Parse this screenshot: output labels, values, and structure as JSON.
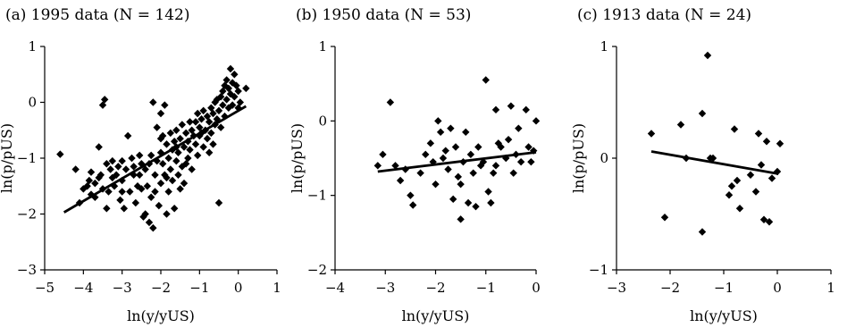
{
  "chart_data": [
    {
      "type": "scatter",
      "title": "(a)  1995 data (N = 142)",
      "xlabel": "ln(y/yUS)",
      "ylabel": "ln(p/pUS)",
      "xlim": [
        -5,
        1
      ],
      "ylim": [
        -3,
        1
      ],
      "xticks": [
        "−5",
        "−4",
        "−3",
        "−2",
        "−1",
        "0",
        "1"
      ],
      "yticks": [
        "−3",
        "−2",
        "−1",
        "0",
        "1"
      ],
      "trendline": [
        [
          -4.5,
          -1.97
        ],
        [
          0.2,
          -0.07
        ]
      ],
      "points": [
        [
          -4.6,
          -0.93
        ],
        [
          -4.2,
          -1.2
        ],
        [
          -4.1,
          -1.8
        ],
        [
          -4.0,
          -1.55
        ],
        [
          -3.9,
          -1.5
        ],
        [
          -3.85,
          -1.4
        ],
        [
          -3.8,
          -1.25
        ],
        [
          -3.8,
          -1.65
        ],
        [
          -3.7,
          -1.45
        ],
        [
          -3.7,
          -1.7
        ],
        [
          -3.6,
          -0.8
        ],
        [
          -3.6,
          -1.35
        ],
        [
          -3.55,
          -1.3
        ],
        [
          -3.5,
          -0.05
        ],
        [
          -3.5,
          -1.55
        ],
        [
          -3.45,
          0.05
        ],
        [
          -3.4,
          -1.1
        ],
        [
          -3.4,
          -1.9
        ],
        [
          -3.35,
          -1.6
        ],
        [
          -3.3,
          -1.2
        ],
        [
          -3.25,
          -1.05
        ],
        [
          -3.2,
          -1.5
        ],
        [
          -3.15,
          -1.3
        ],
        [
          -3.1,
          -1.15
        ],
        [
          -3.05,
          -1.75
        ],
        [
          -3.0,
          -1.05
        ],
        [
          -3.0,
          -1.4
        ],
        [
          -2.95,
          -1.9
        ],
        [
          -2.9,
          -1.2
        ],
        [
          -2.85,
          -0.6
        ],
        [
          -2.8,
          -1.6
        ],
        [
          -2.75,
          -1.0
        ],
        [
          -2.7,
          -1.3
        ],
        [
          -2.65,
          -1.8
        ],
        [
          -2.6,
          -1.5
        ],
        [
          -2.55,
          -0.95
        ],
        [
          -2.5,
          -1.1
        ],
        [
          -2.5,
          -1.55
        ],
        [
          -2.45,
          -2.05
        ],
        [
          -2.4,
          -2.0
        ],
        [
          -2.4,
          -1.2
        ],
        [
          -2.35,
          -1.5
        ],
        [
          -2.3,
          -2.15
        ],
        [
          -2.3,
          -1.1
        ],
        [
          -2.25,
          -0.95
        ],
        [
          -2.25,
          -1.7
        ],
        [
          -2.2,
          -2.25
        ],
        [
          -2.2,
          0.0
        ],
        [
          -2.15,
          -1.3
        ],
        [
          -2.1,
          -0.45
        ],
        [
          -2.1,
          -1.05
        ],
        [
          -2.05,
          -1.85
        ],
        [
          -2.0,
          -0.2
        ],
        [
          -2.0,
          -0.9
        ],
        [
          -2.0,
          -1.45
        ],
        [
          -1.95,
          -0.6
        ],
        [
          -1.95,
          -1.1
        ],
        [
          -1.9,
          -1.3
        ],
        [
          -1.9,
          -0.05
        ],
        [
          -1.85,
          -0.75
        ],
        [
          -1.85,
          -2.0
        ],
        [
          -1.8,
          -1.0
        ],
        [
          -1.8,
          -1.6
        ],
        [
          -1.75,
          -0.55
        ],
        [
          -1.75,
          -1.2
        ],
        [
          -1.7,
          -0.85
        ],
        [
          -1.7,
          -1.4
        ],
        [
          -1.65,
          -1.9
        ],
        [
          -1.65,
          -0.7
        ],
        [
          -1.6,
          -1.05
        ],
        [
          -1.6,
          -0.5
        ],
        [
          -1.55,
          -1.3
        ],
        [
          -1.55,
          -0.9
        ],
        [
          -1.5,
          -1.55
        ],
        [
          -1.5,
          -0.65
        ],
        [
          -1.45,
          -0.4
        ],
        [
          -1.45,
          -1.15
        ],
        [
          -1.4,
          -0.8
        ],
        [
          -1.4,
          -1.45
        ],
        [
          -1.35,
          -0.55
        ],
        [
          -1.3,
          -0.7
        ],
        [
          -1.3,
          -1.0
        ],
        [
          -1.25,
          -0.85
        ],
        [
          -1.2,
          -0.5
        ],
        [
          -1.2,
          -1.2
        ],
        [
          -1.15,
          -0.6
        ],
        [
          -1.1,
          -0.75
        ],
        [
          -1.1,
          -0.35
        ],
        [
          -1.05,
          -0.95
        ],
        [
          -1.0,
          -0.45
        ],
        [
          -1.0,
          -0.6
        ],
        [
          -0.95,
          -0.3
        ],
        [
          -0.9,
          -0.8
        ],
        [
          -0.9,
          -0.15
        ],
        [
          -0.85,
          -0.5
        ],
        [
          -0.8,
          -0.25
        ],
        [
          -0.8,
          -0.65
        ],
        [
          -0.75,
          -0.35
        ],
        [
          -0.7,
          -0.1
        ],
        [
          -0.7,
          -0.55
        ],
        [
          -0.65,
          -0.2
        ],
        [
          -0.6,
          -0.4
        ],
        [
          -0.6,
          0.0
        ],
        [
          -0.55,
          -0.3
        ],
        [
          -0.5,
          -1.8
        ],
        [
          -0.5,
          -0.15
        ],
        [
          -0.45,
          -0.45
        ],
        [
          -0.45,
          0.1
        ],
        [
          -0.4,
          -0.05
        ],
        [
          -0.4,
          0.2
        ],
        [
          -0.35,
          -0.25
        ],
        [
          -0.35,
          0.3
        ],
        [
          -0.3,
          0.05
        ],
        [
          -0.3,
          0.4
        ],
        [
          -0.25,
          -0.1
        ],
        [
          -0.25,
          0.25
        ],
        [
          -0.2,
          0.6
        ],
        [
          -0.2,
          0.15
        ],
        [
          -0.15,
          0.35
        ],
        [
          -0.15,
          -0.05
        ],
        [
          -0.1,
          0.5
        ],
        [
          -0.1,
          0.1
        ],
        [
          -0.05,
          0.3
        ],
        [
          0.0,
          -0.1
        ],
        [
          0.0,
          0.2
        ],
        [
          0.05,
          0.0
        ],
        [
          0.2,
          0.25
        ],
        [
          -0.65,
          -0.75
        ],
        [
          -1.6,
          -0.8
        ],
        [
          -2.7,
          -1.15
        ],
        [
          -3.0,
          -1.6
        ],
        [
          -2.15,
          -1.6
        ],
        [
          -1.35,
          -1.1
        ],
        [
          -0.95,
          -0.55
        ],
        [
          -2.55,
          -1.3
        ],
        [
          -1.85,
          -1.35
        ],
        [
          -3.25,
          -1.35
        ],
        [
          -2.0,
          -0.65
        ],
        [
          -1.25,
          -0.35
        ],
        [
          -0.75,
          -0.9
        ],
        [
          -0.55,
          0.05
        ],
        [
          -1.05,
          -0.2
        ]
      ]
    },
    {
      "type": "scatter",
      "title": "(b)  1950 data (N = 53)",
      "xlabel": "ln(y/yUS)",
      "ylabel": "ln(p/pUS)",
      "xlim": [
        -4,
        0
      ],
      "ylim": [
        -2,
        1
      ],
      "xticks": [
        "−4",
        "−3",
        "−2",
        "−1",
        "0"
      ],
      "yticks": [
        "−2",
        "−1",
        "0",
        "1"
      ],
      "trendline": [
        [
          -3.15,
          -0.68
        ],
        [
          0.0,
          -0.42
        ]
      ],
      "points": [
        [
          -3.15,
          -0.6
        ],
        [
          -3.05,
          -0.45
        ],
        [
          -2.9,
          0.25
        ],
        [
          -2.8,
          -0.6
        ],
        [
          -2.7,
          -0.8
        ],
        [
          -2.6,
          -0.65
        ],
        [
          -2.5,
          -1.0
        ],
        [
          -2.45,
          -1.13
        ],
        [
          -2.3,
          -0.7
        ],
        [
          -2.2,
          -0.45
        ],
        [
          -2.1,
          -0.3
        ],
        [
          -2.05,
          -0.55
        ],
        [
          -2.0,
          -0.85
        ],
        [
          -1.95,
          0.0
        ],
        [
          -1.9,
          -0.15
        ],
        [
          -1.85,
          -0.5
        ],
        [
          -1.8,
          -0.4
        ],
        [
          -1.75,
          -0.65
        ],
        [
          -1.7,
          -0.1
        ],
        [
          -1.65,
          -1.05
        ],
        [
          -1.6,
          -0.35
        ],
        [
          -1.55,
          -0.75
        ],
        [
          -1.5,
          -1.32
        ],
        [
          -1.45,
          -0.55
        ],
        [
          -1.4,
          -0.15
        ],
        [
          -1.35,
          -1.1
        ],
        [
          -1.3,
          -0.45
        ],
        [
          -1.25,
          -0.7
        ],
        [
          -1.2,
          -1.15
        ],
        [
          -1.15,
          -0.35
        ],
        [
          -1.1,
          -0.6
        ],
        [
          -1.05,
          -0.55
        ],
        [
          -1.0,
          0.55
        ],
        [
          -0.95,
          -0.95
        ],
        [
          -0.9,
          -1.1
        ],
        [
          -0.85,
          -0.7
        ],
        [
          -0.8,
          -0.6
        ],
        [
          -0.75,
          -0.3
        ],
        [
          -0.7,
          -0.35
        ],
        [
          -0.6,
          -0.5
        ],
        [
          -0.55,
          -0.25
        ],
        [
          -0.5,
          0.2
        ],
        [
          -0.45,
          -0.7
        ],
        [
          -0.4,
          -0.45
        ],
        [
          -0.35,
          -0.1
        ],
        [
          -0.3,
          -0.55
        ],
        [
          -0.2,
          0.15
        ],
        [
          -0.15,
          -0.35
        ],
        [
          -0.1,
          -0.55
        ],
        [
          -0.05,
          -0.4
        ],
        [
          0.0,
          0.0
        ],
        [
          -0.8,
          0.15
        ],
        [
          -1.5,
          -0.85
        ]
      ]
    },
    {
      "type": "scatter",
      "title": "(c)  1913 data (N = 24)",
      "xlabel": "ln(y/yUS)",
      "ylabel": "ln(p/pUS)",
      "xlim": [
        -3,
        1
      ],
      "ylim": [
        -1,
        1
      ],
      "xticks": [
        "−3",
        "−2",
        "−1",
        "0",
        "1"
      ],
      "yticks": [
        "−1",
        "0",
        "1"
      ],
      "trendline": [
        [
          -2.35,
          0.06
        ],
        [
          0.02,
          -0.14
        ]
      ],
      "points": [
        [
          -2.35,
          0.22
        ],
        [
          -2.1,
          -0.53
        ],
        [
          -1.8,
          0.3
        ],
        [
          -1.7,
          0.0
        ],
        [
          -1.4,
          0.4
        ],
        [
          -1.3,
          0.92
        ],
        [
          -1.25,
          0.0
        ],
        [
          -1.2,
          0.0
        ],
        [
          -1.4,
          -0.66
        ],
        [
          -0.9,
          -0.33
        ],
        [
          -0.85,
          -0.25
        ],
        [
          -0.8,
          0.26
        ],
        [
          -0.75,
          -0.2
        ],
        [
          -0.7,
          -0.45
        ],
        [
          -0.5,
          -0.15
        ],
        [
          -0.4,
          -0.3
        ],
        [
          -0.35,
          0.22
        ],
        [
          -0.3,
          -0.06
        ],
        [
          -0.25,
          -0.55
        ],
        [
          -0.2,
          0.15
        ],
        [
          -0.15,
          -0.57
        ],
        [
          -0.1,
          -0.18
        ],
        [
          0.0,
          -0.12
        ],
        [
          0.05,
          0.13
        ]
      ]
    }
  ]
}
